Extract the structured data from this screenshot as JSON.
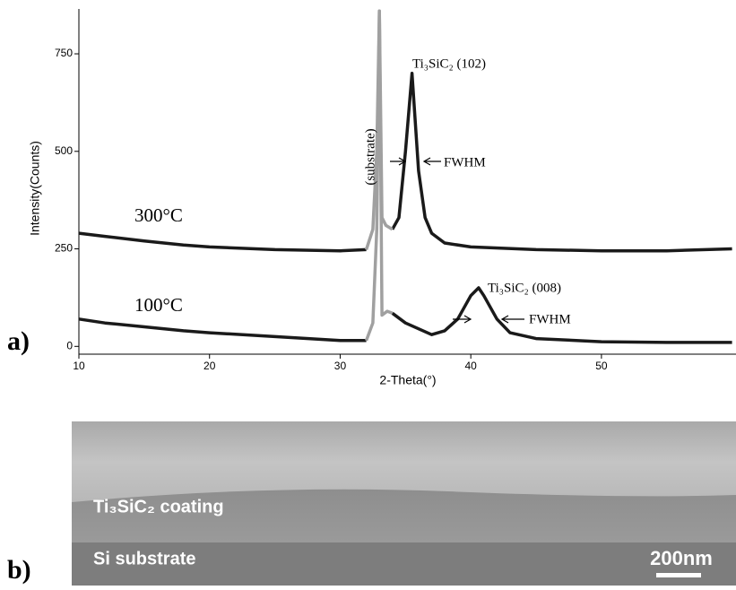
{
  "chart_data": {
    "type": "line",
    "xlabel": "2-Theta(°)",
    "ylabel": "Intensity(Counts)",
    "xlim": [
      10,
      60.3
    ],
    "ylim": [
      -20,
      865
    ],
    "xticks": [
      10,
      20,
      30,
      40,
      50
    ],
    "yticks": [
      0,
      250,
      500,
      750
    ],
    "series": [
      {
        "name": "300°C",
        "color": "#1a1a1a",
        "x": [
          10,
          12,
          15,
          18,
          20,
          25,
          30,
          32,
          null,
          34,
          34.5,
          35,
          35.5,
          36,
          36.5,
          37,
          38,
          40,
          45,
          50,
          55,
          60
        ],
        "values": [
          290,
          282,
          270,
          260,
          255,
          248,
          245,
          248,
          null,
          300,
          330,
          500,
          700,
          450,
          330,
          290,
          265,
          255,
          248,
          245,
          245,
          250
        ]
      },
      {
        "color": "#a0a0a0",
        "x": [
          32,
          32.5,
          32.8,
          33,
          33.2,
          33.5,
          34
        ],
        "values": [
          248,
          300,
          500,
          860,
          330,
          310,
          300
        ]
      },
      {
        "name": "100°C",
        "color": "#1a1a1a",
        "x": [
          10,
          12,
          15,
          18,
          20,
          25,
          30,
          32,
          null,
          34,
          35,
          36,
          37,
          38,
          39,
          40,
          40.6,
          41,
          42,
          43,
          45,
          50,
          55,
          60
        ],
        "values": [
          70,
          60,
          50,
          40,
          35,
          25,
          15,
          15,
          null,
          85,
          60,
          45,
          30,
          40,
          70,
          130,
          150,
          130,
          70,
          35,
          20,
          12,
          10,
          10
        ]
      },
      {
        "color": "#a0a0a0",
        "x": [
          32,
          32.5,
          32.8,
          33,
          33.2,
          33.6,
          34
        ],
        "values": [
          15,
          60,
          300,
          860,
          80,
          90,
          85
        ]
      }
    ],
    "annotations": [
      "Ti₃SiC₂ (102)",
      "FWHM",
      "(substrate)",
      "Ti₃SiC₂ (008)",
      "FWHM"
    ],
    "panel_label": "a)"
  },
  "panel_b": {
    "panel_label": "b)",
    "layers": [
      "Ti₃SiC₂ coating",
      "Si substrate"
    ],
    "scale_bar": "200nm"
  }
}
